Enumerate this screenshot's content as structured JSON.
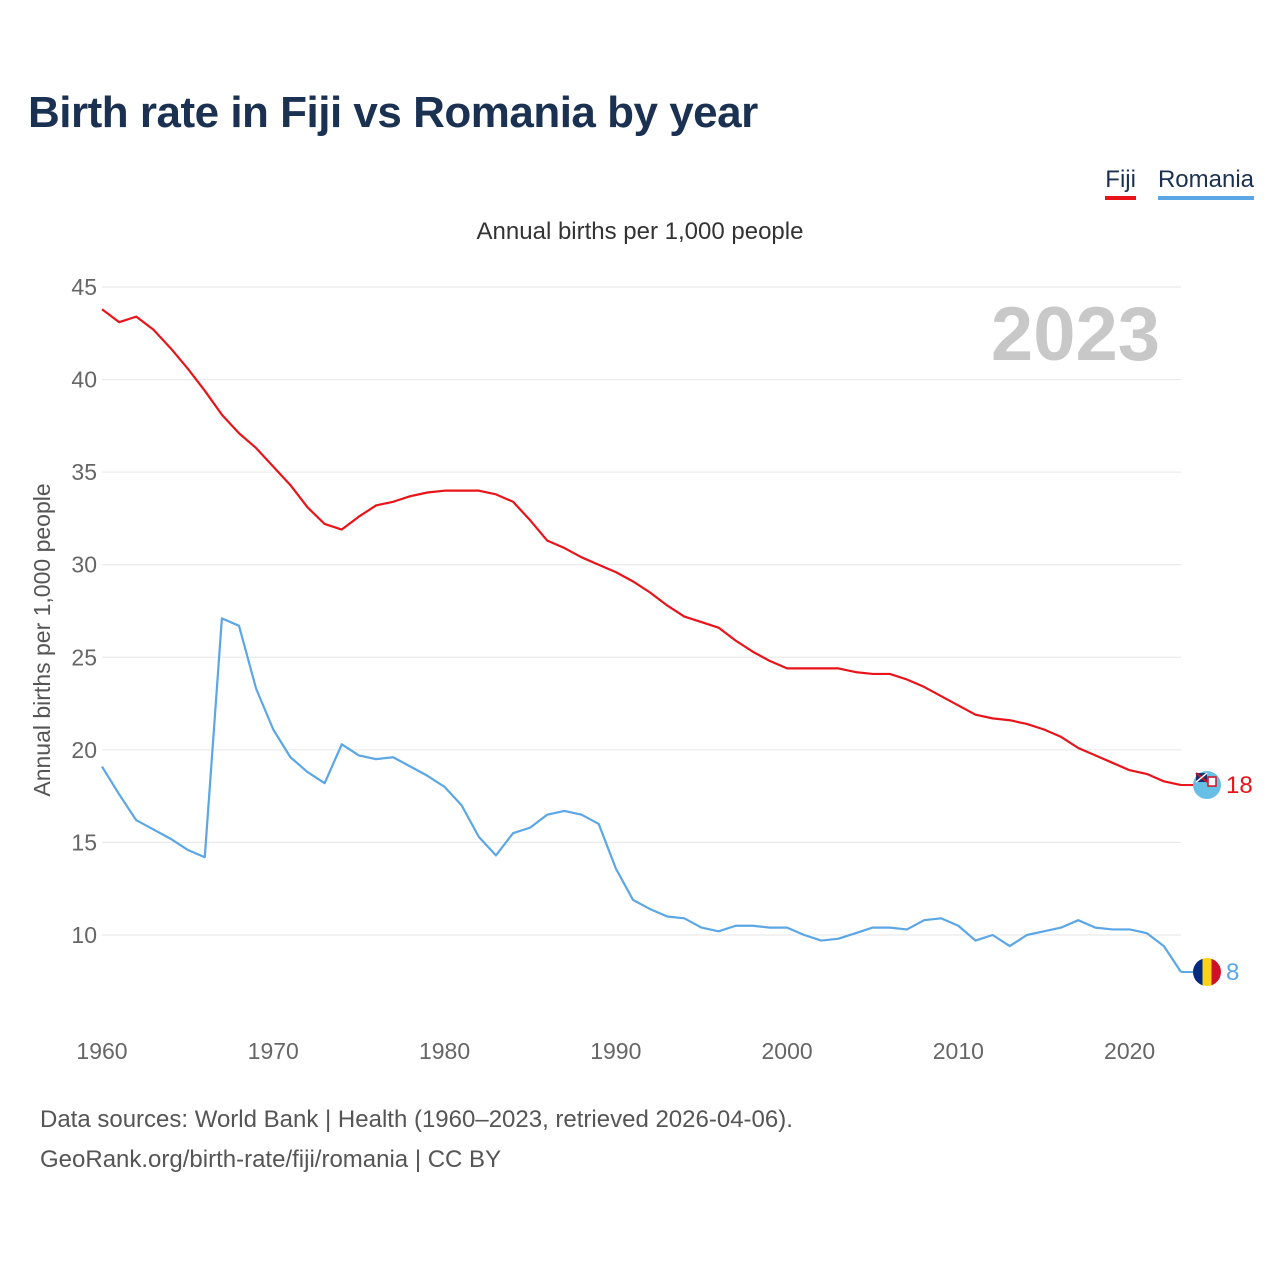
{
  "title": "Birth rate in Fiji vs Romania by year",
  "subtitle": "Annual births per 1,000 people",
  "year_label": "2023",
  "legend": [
    {
      "name": "Fiji",
      "color": "#e8141a"
    },
    {
      "name": "Romania",
      "color": "#5ba7e5"
    }
  ],
  "source_line1": "Data sources: World Bank | Health (1960–2023, retrieved 2026-04-06).",
  "source_line2": "GeoRank.org/birth-rate/fiji/romania | CC BY",
  "chart_data": {
    "type": "line",
    "title": "Birth rate in Fiji vs Romania by year",
    "ylabel": "Annual births per 1,000 people",
    "xlabel": "",
    "xlim": [
      1960,
      2023
    ],
    "ylim": [
      6.5,
      45
    ],
    "xticks": [
      1960,
      1970,
      1980,
      1990,
      2000,
      2010,
      2020
    ],
    "yticks": [
      10,
      15,
      20,
      25,
      30,
      35,
      40,
      45
    ],
    "grid": true,
    "x": [
      1960,
      1961,
      1962,
      1963,
      1964,
      1965,
      1966,
      1967,
      1968,
      1969,
      1970,
      1971,
      1972,
      1973,
      1974,
      1975,
      1976,
      1977,
      1978,
      1979,
      1980,
      1981,
      1982,
      1983,
      1984,
      1985,
      1986,
      1987,
      1988,
      1989,
      1990,
      1991,
      1992,
      1993,
      1994,
      1995,
      1996,
      1997,
      1998,
      1999,
      2000,
      2001,
      2002,
      2003,
      2004,
      2005,
      2006,
      2007,
      2008,
      2009,
      2010,
      2011,
      2012,
      2013,
      2014,
      2015,
      2016,
      2017,
      2018,
      2019,
      2020,
      2021,
      2022,
      2023
    ],
    "series": [
      {
        "name": "Fiji",
        "color": "#e8141a",
        "end_label": "18",
        "values": [
          43.8,
          43.1,
          43.4,
          42.7,
          41.7,
          40.6,
          39.4,
          38.1,
          37.1,
          36.3,
          35.3,
          34.3,
          33.1,
          32.2,
          31.9,
          32.6,
          33.2,
          33.4,
          33.7,
          33.9,
          34.0,
          34.0,
          34.0,
          33.8,
          33.4,
          32.4,
          31.3,
          30.9,
          30.4,
          30.0,
          29.6,
          29.1,
          28.5,
          27.8,
          27.2,
          26.9,
          26.6,
          25.9,
          25.3,
          24.8,
          24.4,
          24.4,
          24.4,
          24.4,
          24.2,
          24.1,
          24.1,
          23.8,
          23.4,
          22.9,
          22.4,
          21.9,
          21.7,
          21.6,
          21.4,
          21.1,
          20.7,
          20.1,
          19.7,
          19.3,
          18.9,
          18.7,
          18.3,
          18.1
        ]
      },
      {
        "name": "Romania",
        "color": "#5ba7e5",
        "end_label": "8",
        "values": [
          19.1,
          17.6,
          16.2,
          15.7,
          15.2,
          14.6,
          14.2,
          27.1,
          26.7,
          23.3,
          21.1,
          19.6,
          18.8,
          18.2,
          20.3,
          19.7,
          19.5,
          19.6,
          19.1,
          18.6,
          18.0,
          17.0,
          15.3,
          14.3,
          15.5,
          15.8,
          16.5,
          16.7,
          16.5,
          16.0,
          13.6,
          11.9,
          11.4,
          11.0,
          10.9,
          10.4,
          10.2,
          10.5,
          10.5,
          10.4,
          10.4,
          10.0,
          9.7,
          9.8,
          10.1,
          10.4,
          10.4,
          10.3,
          10.8,
          10.9,
          10.5,
          9.7,
          10.0,
          9.4,
          10.0,
          10.2,
          10.4,
          10.8,
          10.4,
          10.3,
          10.3,
          10.1,
          9.4,
          8.0
        ]
      }
    ]
  }
}
